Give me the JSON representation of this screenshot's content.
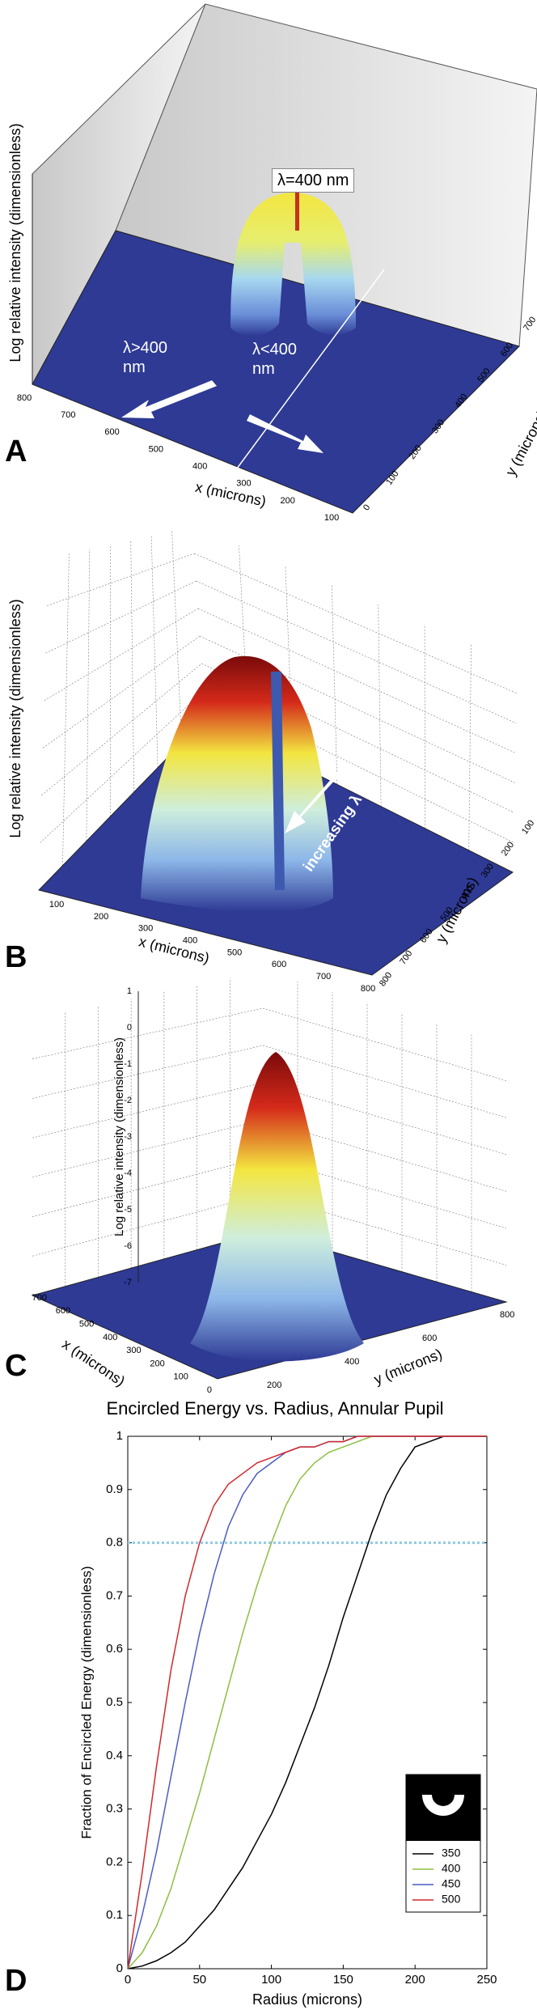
{
  "panels": [
    {
      "label": "A",
      "z_label": "Log relative intensity (dimensionless)",
      "x_label": "x (microns)",
      "y_label": "y (microns)",
      "x_ticks": [
        800,
        700,
        600,
        500,
        400,
        300,
        200,
        100
      ],
      "y_ticks": [
        0,
        100,
        200,
        300,
        400,
        500,
        600,
        700
      ],
      "annotations": [
        "λ=400 nm",
        "λ>400 nm",
        "λ<400 nm"
      ]
    },
    {
      "label": "B",
      "z_label": "Log relative intensity (dimensionless)",
      "x_label": "x (microns)",
      "y_label": "y (microns)",
      "x_ticks": [
        100,
        200,
        300,
        400,
        500,
        600,
        700,
        800
      ],
      "y_ticks": [
        800,
        700,
        600,
        500,
        400,
        300,
        200,
        100
      ],
      "annotations": [
        "increasing λ"
      ]
    },
    {
      "label": "C",
      "z_label": "Log relative intensity (dimensionless)",
      "x_label": "x (microns)",
      "y_label": "y (microns)",
      "z_ticks": [
        1,
        0,
        -1,
        -2,
        -3,
        -4,
        -5,
        -6,
        -7
      ],
      "x_ticks": [
        700,
        600,
        500,
        400,
        300,
        200,
        100,
        0
      ],
      "y_ticks": [
        200,
        400,
        600,
        800
      ]
    }
  ],
  "chart_data": {
    "type": "line",
    "label": "D",
    "title": "Encircled Energy vs. Radius, Annular Pupil",
    "x_label": "Radius (microns)",
    "y_label": "Fraction of Encircled Energy (dimensionless)",
    "x": [
      0,
      10,
      20,
      30,
      40,
      50,
      60,
      70,
      80,
      90,
      100,
      110,
      120,
      130,
      140,
      150,
      160,
      170,
      180,
      190,
      200,
      210,
      220,
      230,
      240,
      250
    ],
    "series": [
      {
        "name": "350",
        "color": "#000000",
        "values": [
          0,
          0.005,
          0.015,
          0.03,
          0.05,
          0.08,
          0.11,
          0.15,
          0.19,
          0.24,
          0.29,
          0.35,
          0.42,
          0.49,
          0.57,
          0.66,
          0.74,
          0.82,
          0.89,
          0.94,
          0.98,
          0.99,
          1,
          1,
          1,
          1
        ]
      },
      {
        "name": "400",
        "color": "#8cbf3f",
        "values": [
          0,
          0.03,
          0.08,
          0.15,
          0.24,
          0.33,
          0.43,
          0.53,
          0.63,
          0.72,
          0.8,
          0.87,
          0.92,
          0.95,
          0.97,
          0.98,
          0.99,
          1,
          1,
          1,
          1,
          1,
          1,
          1,
          1,
          1
        ]
      },
      {
        "name": "450",
        "color": "#4a5cc4",
        "values": [
          0,
          0.1,
          0.22,
          0.36,
          0.5,
          0.63,
          0.74,
          0.83,
          0.89,
          0.93,
          0.95,
          0.97,
          0.98,
          0.98,
          0.99,
          0.99,
          1,
          1,
          1,
          1,
          1,
          1,
          1,
          1,
          1,
          1
        ]
      },
      {
        "name": "500",
        "color": "#d0282c",
        "values": [
          0,
          0.18,
          0.38,
          0.56,
          0.7,
          0.8,
          0.87,
          0.91,
          0.93,
          0.95,
          0.96,
          0.97,
          0.98,
          0.98,
          0.99,
          0.99,
          1,
          1,
          1,
          1,
          1,
          1,
          1,
          1,
          1,
          1
        ]
      }
    ],
    "xlim": [
      0,
      250
    ],
    "ylim": [
      0,
      1
    ],
    "xticks": [
      0,
      50,
      100,
      150,
      200,
      250
    ],
    "yticks": [
      0,
      0.1,
      0.2,
      0.3,
      0.4,
      0.5,
      0.6,
      0.7,
      0.8,
      0.9,
      1
    ],
    "reference_line": {
      "value": 0.8,
      "color": "#8ecae6"
    },
    "legend": "lower right"
  }
}
